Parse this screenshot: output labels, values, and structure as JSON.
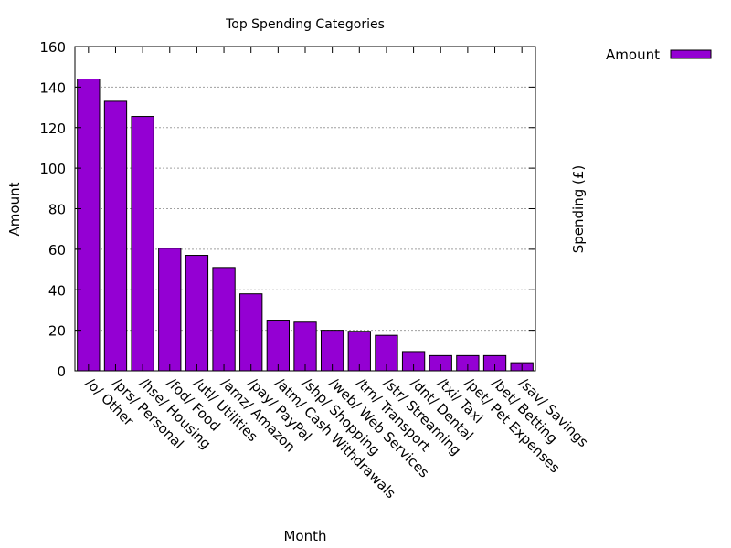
{
  "chart_data": {
    "type": "bar",
    "title": "Top Spending Categories",
    "xlabel": "Month",
    "ylabel": "Amount",
    "y2label": "Spending (£)",
    "ylim": [
      0,
      160
    ],
    "yticks": [
      0,
      20,
      40,
      60,
      80,
      100,
      120,
      140,
      160
    ],
    "grid": true,
    "legend_position": "top-right",
    "bar_color": "#9400d3",
    "categories": [
      "/o/ Other",
      "/prs/ Personal",
      "/hse/ Housing",
      "/fod/ Food",
      "/utl/ Utilities",
      "/amz/ Amazon",
      "/pay/ PayPal",
      "/atm/ Cash Withdrawals",
      "/shp/ Shopping",
      "/web/ Web Services",
      "/trn/ Transport",
      "/str/ Streaming",
      "/dnt/ Dental",
      "/txi/ Taxi",
      "/pet/ Pet Expenses",
      "/bet/ Betting",
      "/sav/ Savings"
    ],
    "series": [
      {
        "name": "Amount",
        "values": [
          144,
          133,
          125.5,
          60.5,
          57,
          51,
          38,
          25,
          24,
          20,
          19.5,
          17.5,
          9.5,
          7.5,
          7.5,
          7.5,
          4
        ]
      }
    ]
  }
}
